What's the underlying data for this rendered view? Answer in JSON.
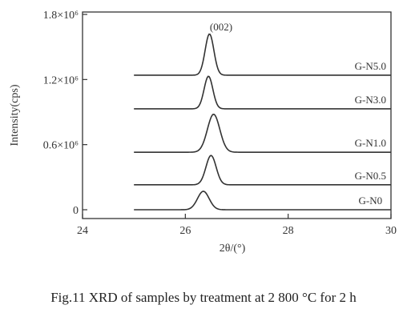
{
  "chart_data": {
    "type": "line",
    "xlabel": "2θ/(°)",
    "ylabel": "Intensity(cps)",
    "xlim": [
      24,
      30
    ],
    "ylim": [
      0,
      1800000
    ],
    "x_ticks": [
      {
        "value": 24,
        "label": "24"
      },
      {
        "value": 26,
        "label": "26"
      },
      {
        "value": 28,
        "label": "28"
      },
      {
        "value": 30,
        "label": "30"
      }
    ],
    "y_ticks": [
      {
        "value": 0,
        "label": "0"
      },
      {
        "value": 600000,
        "label": "0.6×10⁶"
      },
      {
        "value": 1200000,
        "label": "1.2×10⁶"
      },
      {
        "value": 1800000,
        "label": "1.8×10⁶"
      }
    ],
    "annotation": "(002)",
    "x_range": [
      25,
      30
    ],
    "series": [
      {
        "name": "G-N0",
        "baseline": 0,
        "peak_x": 26.35,
        "peak_height": 170000,
        "width": 0.16
      },
      {
        "name": "G-N0.5",
        "baseline": 230000,
        "peak_x": 26.5,
        "peak_height": 270000,
        "width": 0.14
      },
      {
        "name": "G-N1.0",
        "baseline": 530000,
        "peak_x": 26.55,
        "peak_height": 350000,
        "width": 0.17
      },
      {
        "name": "G-N3.0",
        "baseline": 930000,
        "peak_x": 26.45,
        "peak_height": 300000,
        "width": 0.12
      },
      {
        "name": "G-N5.0",
        "baseline": 1240000,
        "peak_x": 26.47,
        "peak_height": 380000,
        "width": 0.12
      }
    ],
    "grid": false,
    "line_color": "#333333"
  },
  "caption": "Fig.11 XRD of samples by treatment at 2 800 °C for 2 h"
}
